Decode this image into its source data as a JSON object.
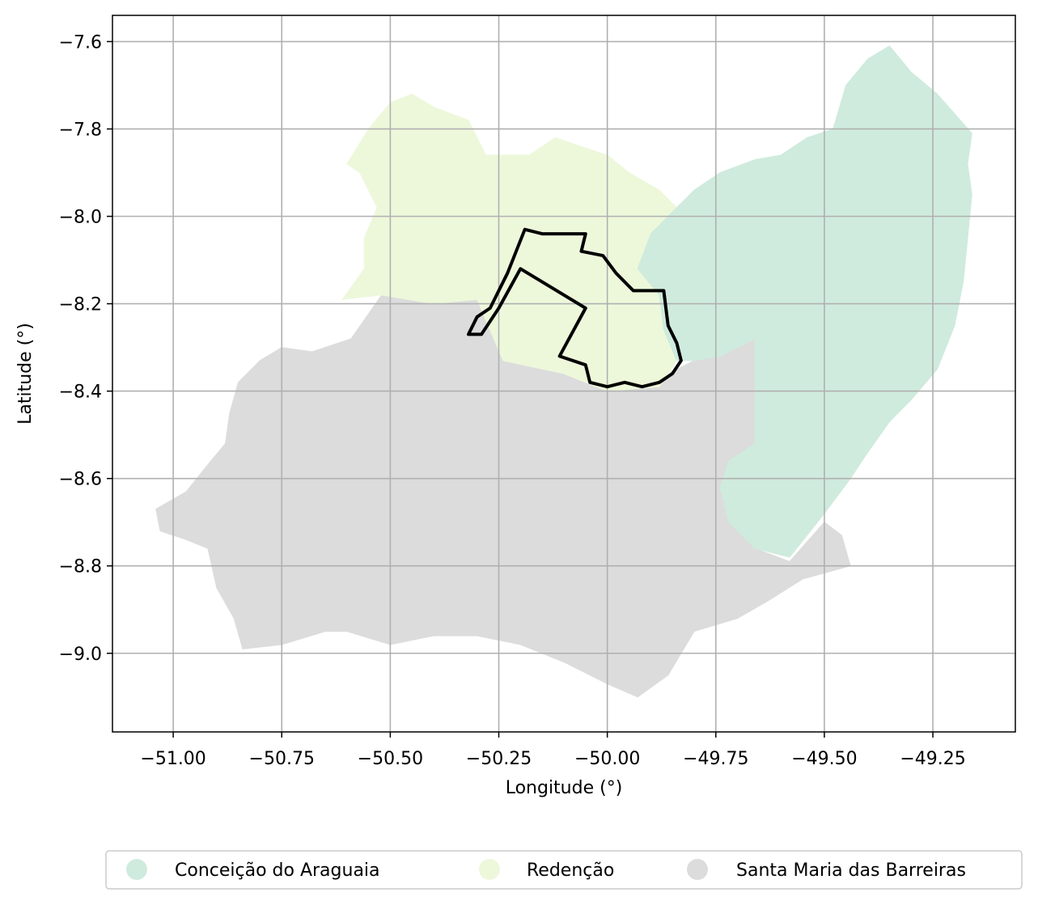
{
  "chart_data": {
    "type": "map",
    "xlabel": "Longitude (°)",
    "ylabel": "Latitude (°)",
    "xlim": [
      -51.14,
      -49.06
    ],
    "ylim": [
      -9.18,
      -7.54
    ],
    "x_ticks": [
      -51.0,
      -50.75,
      -50.5,
      -50.25,
      -50.0,
      -49.75,
      -49.5,
      -49.25
    ],
    "x_tick_labels": [
      "−51.00",
      "−50.75",
      "−50.50",
      "−50.25",
      "−50.00",
      "−49.75",
      "−49.50",
      "−49.25"
    ],
    "y_ticks": [
      -7.6,
      -7.8,
      -8.0,
      -8.2,
      -8.4,
      -8.6,
      -8.8,
      -9.0
    ],
    "y_tick_labels": [
      "−7.6",
      "−7.8",
      "−8.0",
      "−8.2",
      "−8.4",
      "−8.6",
      "−8.8",
      "−9.0"
    ],
    "grid": true,
    "legend_position": "bottom-center",
    "legend": [
      {
        "label": "Conceição do Araguaia",
        "color": "#cfebdd"
      },
      {
        "label": "Redenção",
        "color": "#edf8db"
      },
      {
        "label": "Santa Maria das Barreiras",
        "color": "#dcdcdc"
      }
    ],
    "regions": [
      {
        "name": "Santa Maria das Barreiras",
        "color": "#dcdcdc",
        "outline": [
          [
            -50.59,
            -8.28
          ],
          [
            -50.52,
            -8.18
          ],
          [
            -50.4,
            -8.2
          ],
          [
            -50.3,
            -8.19
          ],
          [
            -50.24,
            -8.31
          ],
          [
            -50.1,
            -8.34
          ],
          [
            -50.01,
            -8.39
          ],
          [
            -49.9,
            -8.38
          ],
          [
            -49.8,
            -8.33
          ],
          [
            -49.74,
            -8.32
          ],
          [
            -49.68,
            -8.28
          ],
          [
            -49.66,
            -8.28
          ],
          [
            -49.66,
            -8.52
          ],
          [
            -49.72,
            -8.56
          ],
          [
            -49.74,
            -8.62
          ],
          [
            -49.72,
            -8.7
          ],
          [
            -49.66,
            -8.76
          ],
          [
            -49.58,
            -8.79
          ],
          [
            -49.5,
            -8.7
          ],
          [
            -49.46,
            -8.73
          ],
          [
            -49.44,
            -8.8
          ],
          [
            -49.55,
            -8.83
          ],
          [
            -49.63,
            -8.88
          ],
          [
            -49.7,
            -8.92
          ],
          [
            -49.8,
            -8.95
          ],
          [
            -49.86,
            -9.05
          ],
          [
            -49.93,
            -9.1
          ],
          [
            -50.0,
            -9.07
          ],
          [
            -50.1,
            -9.02
          ],
          [
            -50.2,
            -8.98
          ],
          [
            -50.3,
            -8.96
          ],
          [
            -50.4,
            -8.96
          ],
          [
            -50.5,
            -8.98
          ],
          [
            -50.6,
            -8.95
          ],
          [
            -50.65,
            -8.95
          ],
          [
            -50.75,
            -8.98
          ],
          [
            -50.84,
            -8.99
          ],
          [
            -50.86,
            -8.92
          ],
          [
            -50.9,
            -8.85
          ],
          [
            -50.92,
            -8.76
          ],
          [
            -50.97,
            -8.74
          ],
          [
            -51.03,
            -8.72
          ],
          [
            -51.04,
            -8.67
          ],
          [
            -50.97,
            -8.63
          ],
          [
            -50.93,
            -8.58
          ],
          [
            -50.88,
            -8.52
          ],
          [
            -50.87,
            -8.45
          ],
          [
            -50.85,
            -8.38
          ],
          [
            -50.8,
            -8.33
          ],
          [
            -50.75,
            -8.3
          ],
          [
            -50.68,
            -8.31
          ]
        ]
      },
      {
        "name": "Redenção",
        "color": "#edf8db",
        "outline": [
          [
            -50.61,
            -8.19
          ],
          [
            -50.56,
            -8.12
          ],
          [
            -50.56,
            -8.05
          ],
          [
            -50.53,
            -7.98
          ],
          [
            -50.57,
            -7.9
          ],
          [
            -50.6,
            -7.88
          ],
          [
            -50.55,
            -7.8
          ],
          [
            -50.5,
            -7.74
          ],
          [
            -50.45,
            -7.72
          ],
          [
            -50.4,
            -7.75
          ],
          [
            -50.32,
            -7.78
          ],
          [
            -50.28,
            -7.86
          ],
          [
            -50.18,
            -7.86
          ],
          [
            -50.12,
            -7.82
          ],
          [
            -50.06,
            -7.84
          ],
          [
            -50.0,
            -7.86
          ],
          [
            -49.95,
            -7.9
          ],
          [
            -49.88,
            -7.94
          ],
          [
            -49.84,
            -7.98
          ],
          [
            -49.88,
            -8.02
          ],
          [
            -49.9,
            -8.04
          ],
          [
            -49.93,
            -8.12
          ],
          [
            -49.88,
            -8.18
          ],
          [
            -49.87,
            -8.26
          ],
          [
            -49.84,
            -8.33
          ],
          [
            -49.88,
            -8.39
          ],
          [
            -50.0,
            -8.4
          ],
          [
            -50.1,
            -8.36
          ],
          [
            -50.24,
            -8.33
          ],
          [
            -50.3,
            -8.19
          ],
          [
            -50.4,
            -8.2
          ],
          [
            -50.52,
            -8.18
          ]
        ]
      },
      {
        "name": "Conceição do Araguaia",
        "color": "#cfebdd",
        "outline": [
          [
            -49.84,
            -7.98
          ],
          [
            -49.8,
            -7.94
          ],
          [
            -49.74,
            -7.9
          ],
          [
            -49.66,
            -7.87
          ],
          [
            -49.6,
            -7.86
          ],
          [
            -49.54,
            -7.82
          ],
          [
            -49.48,
            -7.8
          ],
          [
            -49.45,
            -7.7
          ],
          [
            -49.4,
            -7.64
          ],
          [
            -49.35,
            -7.61
          ],
          [
            -49.3,
            -7.67
          ],
          [
            -49.24,
            -7.72
          ],
          [
            -49.16,
            -7.81
          ],
          [
            -49.17,
            -7.88
          ],
          [
            -49.16,
            -7.95
          ],
          [
            -49.17,
            -8.05
          ],
          [
            -49.18,
            -8.15
          ],
          [
            -49.2,
            -8.25
          ],
          [
            -49.24,
            -8.35
          ],
          [
            -49.3,
            -8.42
          ],
          [
            -49.35,
            -8.47
          ],
          [
            -49.4,
            -8.54
          ],
          [
            -49.44,
            -8.6
          ],
          [
            -49.5,
            -8.68
          ],
          [
            -49.58,
            -8.78
          ],
          [
            -49.66,
            -8.76
          ],
          [
            -49.72,
            -8.7
          ],
          [
            -49.74,
            -8.62
          ],
          [
            -49.72,
            -8.56
          ],
          [
            -49.66,
            -8.52
          ],
          [
            -49.66,
            -8.28
          ],
          [
            -49.74,
            -8.32
          ],
          [
            -49.8,
            -8.33
          ],
          [
            -49.84,
            -8.33
          ],
          [
            -49.87,
            -8.26
          ],
          [
            -49.88,
            -8.18
          ],
          [
            -49.93,
            -8.12
          ],
          [
            -49.9,
            -8.04
          ],
          [
            -49.88,
            -8.02
          ]
        ]
      }
    ],
    "outlined_area": {
      "color": "#000000",
      "outline": [
        [
          -50.32,
          -8.27
        ],
        [
          -50.3,
          -8.23
        ],
        [
          -50.27,
          -8.21
        ],
        [
          -50.23,
          -8.13
        ],
        [
          -50.21,
          -8.08
        ],
        [
          -50.19,
          -8.03
        ],
        [
          -50.15,
          -8.04
        ],
        [
          -50.1,
          -8.04
        ],
        [
          -50.05,
          -8.04
        ],
        [
          -50.06,
          -8.08
        ],
        [
          -50.01,
          -8.09
        ],
        [
          -49.98,
          -8.13
        ],
        [
          -49.94,
          -8.17
        ],
        [
          -49.87,
          -8.17
        ],
        [
          -49.86,
          -8.25
        ],
        [
          -49.84,
          -8.29
        ],
        [
          -49.83,
          -8.33
        ],
        [
          -49.85,
          -8.36
        ],
        [
          -49.88,
          -8.38
        ],
        [
          -49.92,
          -8.39
        ],
        [
          -49.96,
          -8.38
        ],
        [
          -50.0,
          -8.39
        ],
        [
          -50.04,
          -8.38
        ],
        [
          -50.05,
          -8.34
        ],
        [
          -50.11,
          -8.32
        ],
        [
          -50.05,
          -8.21
        ],
        [
          -50.2,
          -8.12
        ],
        [
          -50.25,
          -8.21
        ],
        [
          -50.29,
          -8.27
        ]
      ]
    }
  }
}
